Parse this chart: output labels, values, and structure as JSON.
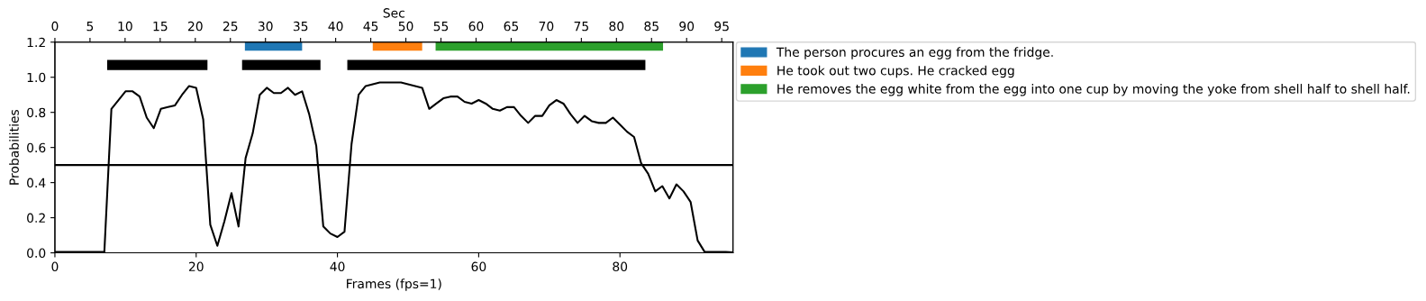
{
  "chart_data": {
    "type": "line",
    "xlabel": "Frames (fps=1)",
    "ylabel": "Probabilities",
    "x2label": "Sec",
    "xlim": [
      0,
      96
    ],
    "xticks": [
      0,
      20,
      40,
      60,
      80
    ],
    "x2lim": [
      0,
      96.6
    ],
    "x2ticks": [
      0,
      5,
      10,
      15,
      20,
      25,
      30,
      35,
      40,
      45,
      50,
      55,
      60,
      65,
      70,
      75,
      80,
      85,
      90,
      95
    ],
    "ylim": [
      0,
      1.2
    ],
    "yticks": [
      {
        "value": 0,
        "label": "0.0"
      },
      0.2,
      0.4,
      0.6,
      0.8,
      {
        "value": 1,
        "label": "1.0"
      },
      1.2
    ],
    "grid": false,
    "legend": "top right",
    "marker": "none",
    "line_style": "solid",
    "ref_lines": [
      {
        "axis": "y",
        "value": 0.5,
        "color": "#000000"
      }
    ],
    "series": [
      {
        "color": "#000000",
        "x": [
          0,
          1,
          2,
          3,
          4,
          5,
          6,
          7,
          8,
          9,
          10,
          11,
          12,
          13,
          14,
          15,
          16,
          17,
          18,
          19,
          20,
          21,
          22,
          23,
          24,
          25,
          26,
          27,
          28,
          29,
          30,
          31,
          32,
          33,
          34,
          35,
          36,
          37,
          38,
          39,
          40,
          41,
          42,
          43,
          44,
          45,
          46,
          47,
          48,
          49,
          50,
          51,
          52,
          53,
          54,
          55,
          56,
          57,
          58,
          59,
          60,
          61,
          62,
          63,
          64,
          65,
          66,
          67,
          68,
          69,
          70,
          71,
          72,
          73,
          74,
          75,
          76,
          77,
          78,
          79,
          80,
          81,
          82,
          83,
          84,
          85,
          86,
          87,
          88,
          89,
          90,
          91,
          92,
          93,
          94,
          95,
          96
        ],
        "values": [
          0.005,
          0.005,
          0.005,
          0.005,
          0.005,
          0.005,
          0.005,
          0.005,
          0.82,
          0.87,
          0.92,
          0.92,
          0.89,
          0.77,
          0.71,
          0.82,
          0.83,
          0.84,
          0.9,
          0.95,
          0.94,
          0.76,
          0.16,
          0.04,
          0.18,
          0.34,
          0.15,
          0.54,
          0.68,
          0.9,
          0.94,
          0.91,
          0.91,
          0.94,
          0.9,
          0.92,
          0.79,
          0.61,
          0.15,
          0.11,
          0.09,
          0.12,
          0.62,
          0.9,
          0.95,
          0.96,
          0.97,
          0.97,
          0.97,
          0.97,
          0.96,
          0.95,
          0.94,
          0.82,
          0.85,
          0.88,
          0.89,
          0.89,
          0.86,
          0.85,
          0.87,
          0.85,
          0.82,
          0.81,
          0.83,
          0.83,
          0.78,
          0.74,
          0.78,
          0.78,
          0.84,
          0.87,
          0.85,
          0.79,
          0.74,
          0.78,
          0.75,
          0.74,
          0.74,
          0.77,
          0.73,
          0.69,
          0.66,
          0.51,
          0.45,
          0.35,
          0.38,
          0.31,
          0.39,
          0.35,
          0.29,
          0.07,
          0.005,
          0.005,
          0.005,
          0.005,
          0.003
        ]
      },
      {
        "color": "#000000",
        "x": [
          7.4,
          21.6
        ],
        "values": [
          1.07,
          1.07
        ]
      },
      {
        "color": "#000000",
        "x": [
          26.5,
          37.6
        ],
        "values": [
          1.07,
          1.07
        ]
      },
      {
        "color": "#000000",
        "x": [
          41.4,
          83.6
        ],
        "values": [
          1.07,
          1.07
        ]
      },
      {
        "name": "The person procures an egg from the fridge.",
        "color": "#1f77b4",
        "x": [
          26.9,
          35.0
        ],
        "values": [
          1.18,
          1.18
        ]
      },
      {
        "name": "He took out two cups. He cracked egg",
        "color": "#ff7f0e",
        "x": [
          45.0,
          52.0
        ],
        "values": [
          1.18,
          1.18
        ]
      },
      {
        "name": "He removes the egg white from the egg into one cup by moving the yoke from shell half to shell half.",
        "color": "#2ca02c",
        "x": [
          53.9,
          86.1
        ],
        "values": [
          1.18,
          1.18
        ]
      }
    ]
  }
}
